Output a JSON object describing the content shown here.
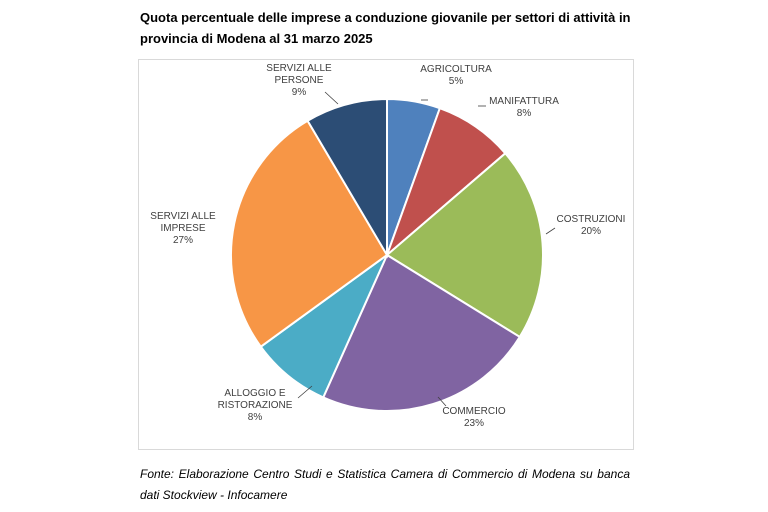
{
  "title": "Quota percentuale delle imprese a conduzione giovanile per settori di attività in provincia di Modena al 31 marzo 2025",
  "source": "Fonte: Elaborazione Centro Studi e Statistica Camera di Commercio di Modena su banca dati Stockview - Infocamere",
  "chart_data": {
    "type": "pie",
    "title": "Quota percentuale delle imprese a conduzione giovanile per settori di attività in provincia di Modena al 31 marzo 2025",
    "unit": "%",
    "slices": [
      {
        "label": "AGRICOLTURA",
        "value": 5.5,
        "display": "5%",
        "color": "#4f81bd"
      },
      {
        "label": "MANIFATTURA",
        "value": 8.2,
        "display": "8%",
        "color": "#c0504d"
      },
      {
        "label": "COSTRUZIONI",
        "value": 20.1,
        "display": "20%",
        "color": "#9bbb59"
      },
      {
        "label": "COMMERCIO",
        "value": 22.9,
        "display": "23%",
        "color": "#8064a2"
      },
      {
        "label": "ALLOGGIO E RISTORAZIONE",
        "value": 8.3,
        "display": "8%",
        "color": "#4bacc6"
      },
      {
        "label": "SERVIZI ALLE IMPRESE",
        "value": 26.5,
        "display": "27%",
        "color": "#f79646"
      },
      {
        "label": "SERVIZI ALLE PERSONE",
        "value": 8.5,
        "display": "9%",
        "color": "#2c4d75"
      }
    ]
  }
}
